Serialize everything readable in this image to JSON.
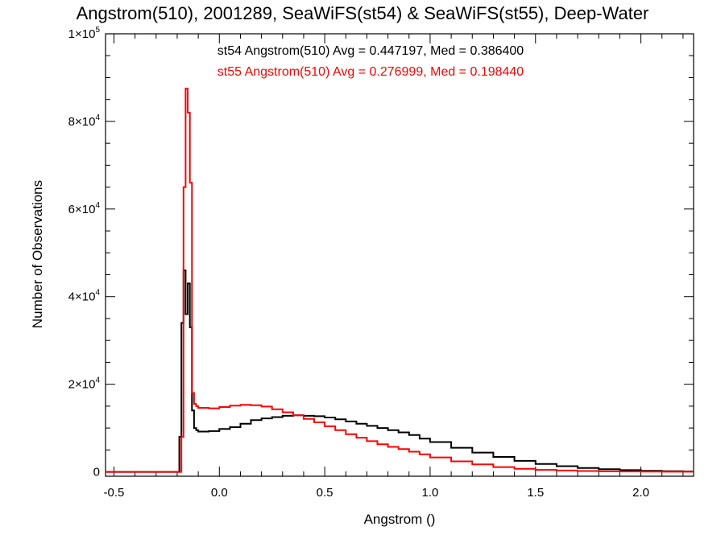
{
  "chart_data": {
    "type": "line",
    "title": "Angstrom(510), 2001289, SeaWiFS(st54) & SeaWiFS(st55), Deep-Water",
    "xlabel": "Angstrom ()",
    "ylabel": "Number of Observations",
    "xlim": [
      -0.54,
      2.25
    ],
    "ylim": [
      -1000,
      100000
    ],
    "x_ticks": [
      -0.5,
      0.0,
      0.5,
      1.0,
      1.5,
      2.0
    ],
    "x_tick_labels": [
      "-0.5",
      "0.0",
      "0.5",
      "1.0",
      "1.5",
      "2.0"
    ],
    "y_ticks": [
      0,
      20000,
      40000,
      60000,
      80000,
      100000
    ],
    "y_tick_labels": [
      {
        "base": "0",
        "exp": ""
      },
      {
        "base": "2×10",
        "exp": "4"
      },
      {
        "base": "4×10",
        "exp": "4"
      },
      {
        "base": "6×10",
        "exp": "4"
      },
      {
        "base": "8×10",
        "exp": "4"
      },
      {
        "base": "1×10",
        "exp": "5"
      }
    ],
    "grid": false,
    "annotations": [
      "st54 Angstrom(510) Avg = 0.447197, Med = 0.386400",
      "st55 Angstrom(510) Avg = 0.276999, Med = 0.198440"
    ],
    "series": [
      {
        "color": "#000000",
        "x": [
          -0.55,
          -0.2,
          -0.19,
          -0.18,
          -0.17,
          -0.16,
          -0.15,
          -0.14,
          -0.13,
          -0.12,
          -0.11,
          -0.1,
          -0.05,
          0.0,
          0.05,
          0.1,
          0.15,
          0.2,
          0.25,
          0.3,
          0.35,
          0.4,
          0.45,
          0.5,
          0.55,
          0.6,
          0.65,
          0.7,
          0.75,
          0.8,
          0.85,
          0.9,
          0.95,
          1.0,
          1.1,
          1.2,
          1.3,
          1.4,
          1.5,
          1.6,
          1.7,
          1.8,
          1.9,
          2.0,
          2.1,
          2.2
        ],
        "y": [
          0,
          0,
          8000,
          34000,
          46000,
          36000,
          43000,
          33000,
          14000,
          10000,
          9500,
          9200,
          9300,
          9800,
          10200,
          11000,
          11800,
          12200,
          12500,
          12800,
          12900,
          12800,
          12700,
          12400,
          12000,
          11500,
          11000,
          10500,
          10000,
          9500,
          9000,
          8400,
          7600,
          6800,
          5500,
          4400,
          3400,
          2500,
          1800,
          1300,
          900,
          600,
          400,
          250,
          150,
          100
        ]
      },
      {
        "color": "#ff0000",
        "x": [
          -0.55,
          -0.2,
          -0.19,
          -0.18,
          -0.17,
          -0.16,
          -0.15,
          -0.14,
          -0.13,
          -0.12,
          -0.11,
          -0.1,
          -0.05,
          0.0,
          0.05,
          0.1,
          0.15,
          0.2,
          0.25,
          0.3,
          0.35,
          0.4,
          0.45,
          0.5,
          0.55,
          0.6,
          0.65,
          0.7,
          0.75,
          0.8,
          0.85,
          0.9,
          0.95,
          1.0,
          1.1,
          1.2,
          1.3,
          1.4,
          1.5,
          1.6,
          1.7,
          1.8,
          1.9,
          2.0,
          2.1,
          2.2
        ],
        "y": [
          0,
          0,
          0,
          8000,
          65000,
          87500,
          82000,
          66000,
          18000,
          15500,
          15000,
          14600,
          14500,
          14800,
          15100,
          15300,
          15200,
          14900,
          14300,
          13600,
          12900,
          12100,
          11300,
          10400,
          9500,
          8600,
          7800,
          7000,
          6300,
          5700,
          5200,
          4600,
          4000,
          3300,
          2400,
          1700,
          1100,
          700,
          450,
          300,
          200,
          120,
          80,
          50,
          30,
          20
        ]
      }
    ]
  }
}
